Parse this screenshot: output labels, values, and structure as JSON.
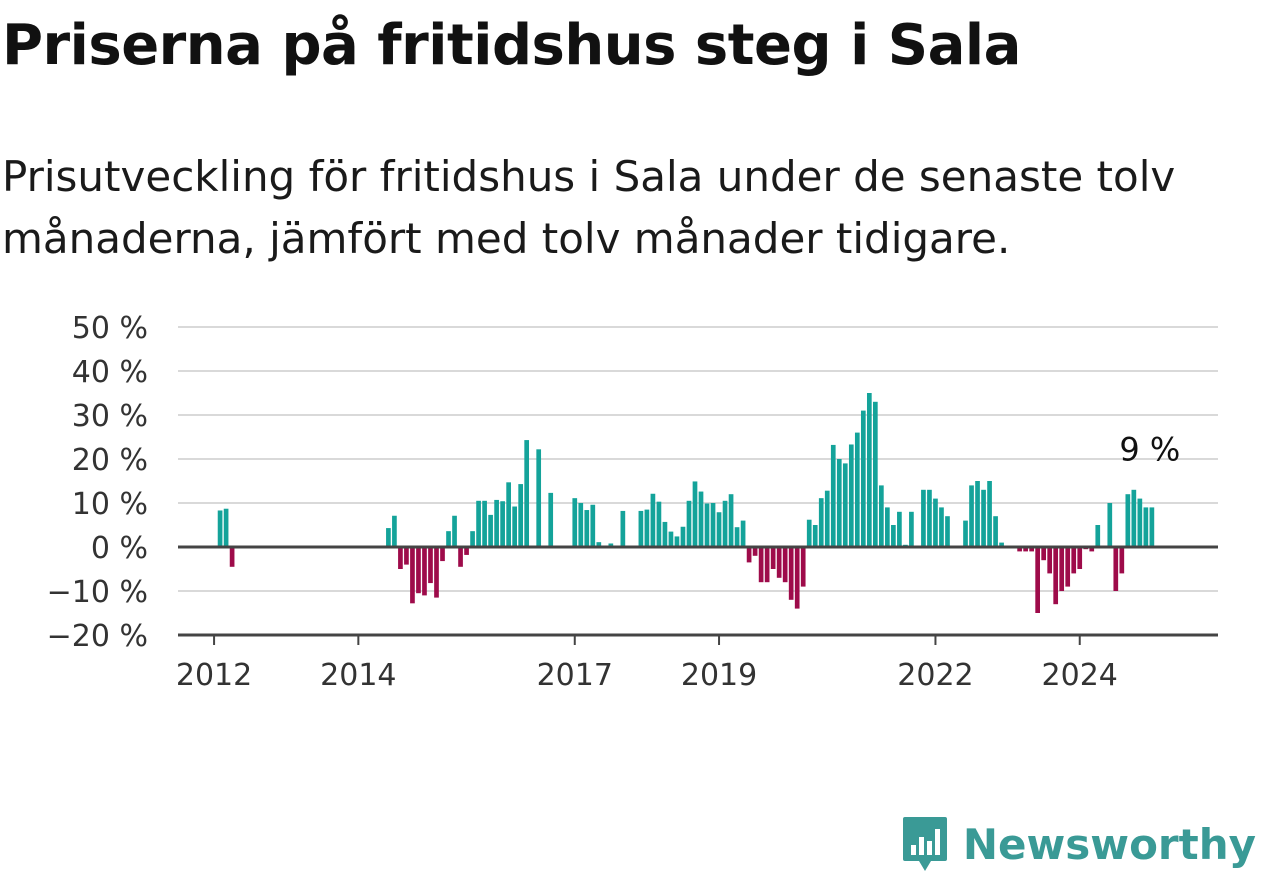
{
  "header": {
    "title": "Priserna på fritidshus steg i Sala",
    "subtitle": "Prisutveckling för fritidshus i Sala under de senaste tolv månaderna, jämfört med tolv månader tidigare."
  },
  "brand": {
    "name": "Newsworthy",
    "icon": "newsworthy-logo-icon",
    "color": "#3a9a96"
  },
  "colors": {
    "positive": "#14a39a",
    "negative": "#9e0b4a",
    "grid": "#d9d9d9",
    "axis": "#444444"
  },
  "chart_data": {
    "type": "bar",
    "unit": "%",
    "ylim": [
      -20,
      50
    ],
    "yticks": [
      -20,
      -10,
      0,
      10,
      20,
      30,
      40,
      50
    ],
    "ytick_labels": [
      "−20 %",
      "−10 %",
      "0 %",
      "10 %",
      "20 %",
      "30 %",
      "40 %",
      "50 %"
    ],
    "xlim": [
      "2011-07",
      "2025-12"
    ],
    "xticks": [
      {
        "date": "2012-01",
        "label": "2012"
      },
      {
        "date": "2014-01",
        "label": "2014"
      },
      {
        "date": "2017-01",
        "label": "2017"
      },
      {
        "date": "2019-01",
        "label": "2019"
      },
      {
        "date": "2022-01",
        "label": "2022"
      },
      {
        "date": "2024-01",
        "label": "2024"
      }
    ],
    "grid": true,
    "legend": "none",
    "annotation": {
      "text": "9 %",
      "date": "2025-01",
      "value": 9
    },
    "series": [
      {
        "x": [
          "2012-02",
          "2012-03",
          "2012-04",
          "2014-06",
          "2014-07",
          "2014-08",
          "2014-09",
          "2014-10",
          "2014-11",
          "2014-12",
          "2015-01",
          "2015-02",
          "2015-03",
          "2015-04",
          "2015-05",
          "2015-06",
          "2015-07",
          "2015-08",
          "2015-09",
          "2015-10",
          "2015-11",
          "2015-12",
          "2016-01",
          "2016-02",
          "2016-03",
          "2016-04",
          "2016-05",
          "2016-06",
          "2016-07",
          "2016-09",
          "2017-01",
          "2017-02",
          "2017-03",
          "2017-04",
          "2017-05",
          "2017-07",
          "2017-09",
          "2017-12",
          "2018-01",
          "2018-02",
          "2018-03",
          "2018-04",
          "2018-05",
          "2018-06",
          "2018-07",
          "2018-08",
          "2018-09",
          "2018-10",
          "2018-11",
          "2018-12",
          "2019-01",
          "2019-02",
          "2019-03",
          "2019-04",
          "2019-05",
          "2019-06",
          "2019-07",
          "2019-08",
          "2019-09",
          "2019-10",
          "2019-11",
          "2019-12",
          "2020-01",
          "2020-02",
          "2020-03",
          "2020-04",
          "2020-05",
          "2020-06",
          "2020-07",
          "2020-08",
          "2020-09",
          "2020-10",
          "2020-11",
          "2020-12",
          "2021-01",
          "2021-02",
          "2021-03",
          "2021-04",
          "2021-05",
          "2021-06",
          "2021-07",
          "2021-08",
          "2021-09",
          "2021-11",
          "2021-12",
          "2022-01",
          "2022-02",
          "2022-03",
          "2022-04",
          "2022-06",
          "2022-07",
          "2022-08",
          "2022-09",
          "2022-10",
          "2022-11",
          "2022-12",
          "2023-03",
          "2023-04",
          "2023-05",
          "2023-06",
          "2023-07",
          "2023-08",
          "2023-09",
          "2023-10",
          "2023-11",
          "2023-12",
          "2024-01",
          "2024-02",
          "2024-03",
          "2024-04",
          "2024-05",
          "2024-06",
          "2024-07",
          "2024-08",
          "2024-09",
          "2024-10",
          "2024-11",
          "2024-12",
          "2025-01"
        ],
        "values": [
          8.3,
          8.7,
          -4.5,
          4.3,
          7.1,
          -5.0,
          -4.0,
          -12.8,
          -10.5,
          -11.0,
          -8.2,
          -11.5,
          -3.2,
          3.6,
          7.1,
          -4.5,
          -1.8,
          3.6,
          10.5,
          10.5,
          7.3,
          10.7,
          10.4,
          14.7,
          9.2,
          14.3,
          24.3,
          0.3,
          22.2,
          12.3,
          11.1,
          10.0,
          8.4,
          9.6,
          1.1,
          0.8,
          8.2,
          8.2,
          8.5,
          12.1,
          10.3,
          5.7,
          3.5,
          2.4,
          4.6,
          10.5,
          14.9,
          12.6,
          9.9,
          10.0,
          7.9,
          10.5,
          12.0,
          4.5,
          6.0,
          -3.5,
          -2.0,
          -8.0,
          -8.0,
          -5.0,
          -7.0,
          -8.0,
          -12.0,
          -14.0,
          -9.0,
          6.2,
          5.0,
          11.1,
          12.8,
          23.2,
          20.0,
          19.0,
          23.3,
          26.0,
          31.0,
          35.0,
          33.0,
          14.0,
          9.0,
          5.0,
          8.0,
          0.5,
          8.0,
          13.0,
          13.0,
          11.0,
          9.0,
          7.0,
          0.2,
          6.0,
          14.0,
          15.0,
          13.0,
          15.0,
          7.0,
          1.0,
          -1.0,
          -1.0,
          -1.0,
          -15.0,
          -3.0,
          -6.0,
          -13.0,
          -10.0,
          -9.0,
          -6.0,
          -5.0,
          -0.5,
          -1.0,
          5.0,
          0.2,
          10.0,
          -10.0,
          -6.0,
          12.0,
          13.0,
          11.0,
          9.0,
          9.0
        ]
      }
    ]
  }
}
